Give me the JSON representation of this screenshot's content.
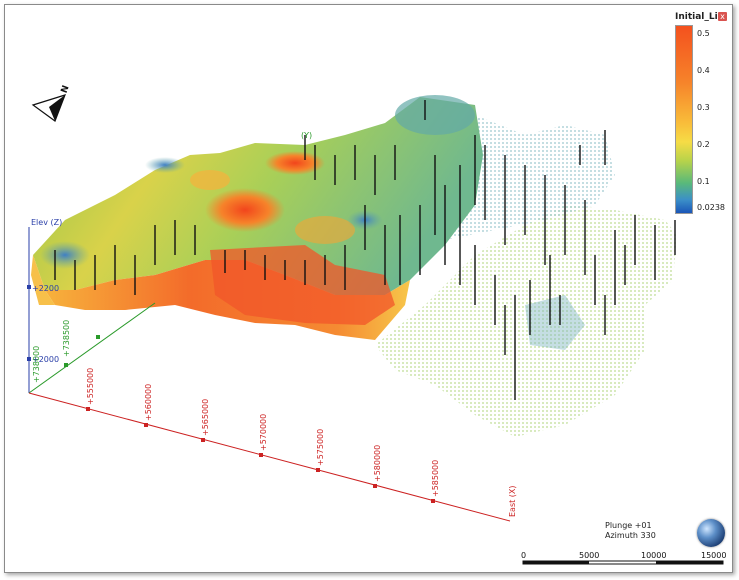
{
  "legend": {
    "title": "Initial_Li",
    "close_glyph": "x",
    "ticks": [
      "0.5",
      "0.4",
      "0.3",
      "0.2",
      "0.1",
      "0.0238"
    ],
    "colors": {
      "max": "#f4511e",
      "high": "#f6832a",
      "mid": "#f9bd3a",
      "low_mid": "#b8d34a",
      "low": "#59b97a",
      "min": "#1a56b8"
    }
  },
  "north_arrow": {
    "label": "N",
    "icon": "north-arrow-icon"
  },
  "axes": {
    "z_label": "Elev (Z)",
    "z_ticks": [
      "+2200",
      "+2000"
    ],
    "y_label": "(Y)",
    "y_ticks": [
      "+738500",
      "+738000"
    ],
    "x_label": "East (X)",
    "x_ticks": [
      "+555000",
      "+560000",
      "+565000",
      "+570000",
      "+575000",
      "+580000",
      "+585000"
    ],
    "colors": {
      "x": "#cc2222",
      "y": "#2a9a2a",
      "z": "#2a3fa8"
    }
  },
  "orientation": {
    "plunge": "Plunge +01",
    "azimuth": "Azimuth 330"
  },
  "scale_bar": {
    "labels": [
      "0",
      "5000",
      "10000",
      "15000"
    ]
  }
}
